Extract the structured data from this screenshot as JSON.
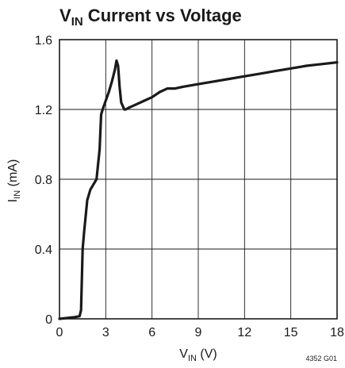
{
  "chart_data": {
    "type": "line",
    "title": "V",
    "title_subscript": "IN",
    "title_rest": " Current vs Voltage",
    "xlabel": "V",
    "xlabel_subscript": "IN",
    "xlabel_rest": " (V)",
    "ylabel": "I",
    "ylabel_subscript": "IN",
    "ylabel_rest": " (mA)",
    "xlim": [
      0,
      18
    ],
    "ylim": [
      0,
      1.6
    ],
    "x_ticks": [
      0,
      3,
      6,
      9,
      12,
      15,
      18
    ],
    "x_tick_labels": [
      "0",
      "3",
      "6",
      "9",
      "12",
      "15",
      "18"
    ],
    "y_ticks": [
      0,
      0.4,
      0.8,
      1.2,
      1.6
    ],
    "y_tick_labels": [
      "0",
      "0.4",
      "0.8",
      "1.2",
      "1.6"
    ],
    "grid": true,
    "figure_code": "4352 G01",
    "series": [
      {
        "x": [
          0,
          1.0,
          1.3,
          1.4,
          1.5,
          1.6,
          1.8,
          2.0,
          2.2,
          2.4,
          2.6,
          2.7,
          2.8,
          3.0,
          3.2,
          3.4,
          3.6,
          3.7,
          3.8,
          3.9,
          4.0,
          4.2,
          4.3,
          4.5,
          5.0,
          5.5,
          6.0,
          6.5,
          7.0,
          7.5,
          8.0,
          9.0,
          10.0,
          11.0,
          12.0,
          13.0,
          14.0,
          15.0,
          16.0,
          17.0,
          18.0
        ],
        "y": [
          0.0,
          0.01,
          0.015,
          0.05,
          0.4,
          0.5,
          0.68,
          0.74,
          0.77,
          0.8,
          0.97,
          1.17,
          1.2,
          1.25,
          1.3,
          1.36,
          1.43,
          1.48,
          1.45,
          1.33,
          1.24,
          1.2,
          1.2,
          1.21,
          1.23,
          1.25,
          1.27,
          1.3,
          1.32,
          1.32,
          1.33,
          1.345,
          1.36,
          1.375,
          1.39,
          1.405,
          1.42,
          1.435,
          1.45,
          1.46,
          1.47
        ]
      }
    ]
  }
}
